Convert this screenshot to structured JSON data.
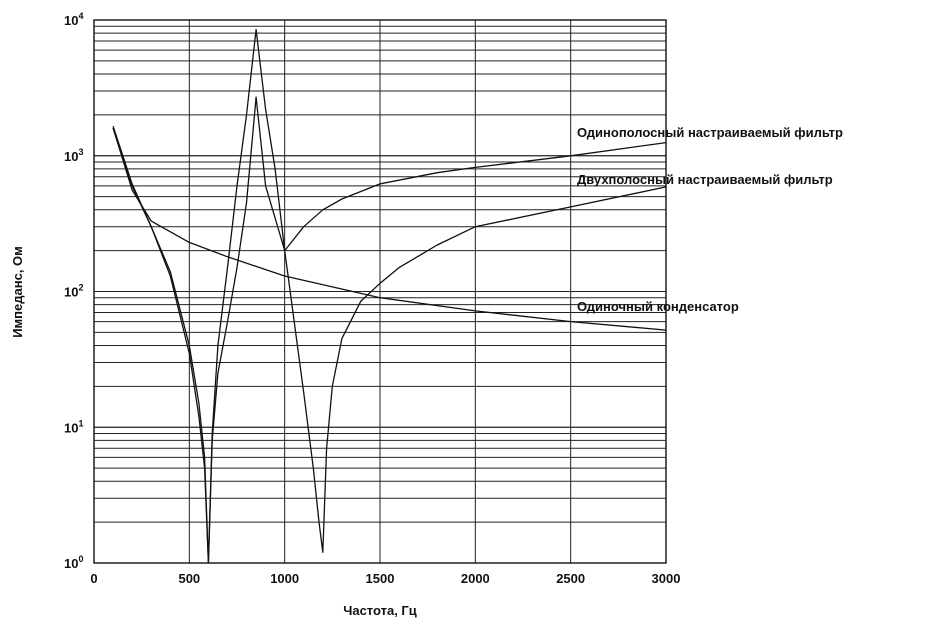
{
  "chart_data": {
    "type": "line",
    "title": "",
    "xlabel": "Частота, Гц",
    "ylabel": "Импеданс, Ом",
    "xlim": [
      0,
      3000
    ],
    "ylim": [
      1,
      10000
    ],
    "yscale": "log",
    "grid": true,
    "x_ticks": [
      0,
      500,
      1000,
      1500,
      2000,
      2500,
      3000
    ],
    "x_tick_labels": [
      "0",
      "500",
      "1000",
      "1500",
      "2000",
      "2500",
      "3000"
    ],
    "y_ticks": [
      1,
      10,
      100,
      1000,
      10000
    ],
    "y_tick_labels": [
      {
        "base": "10",
        "exp": "0"
      },
      {
        "base": "10",
        "exp": "1"
      },
      {
        "base": "10",
        "exp": "2"
      },
      {
        "base": "10",
        "exp": "3"
      },
      {
        "base": "10",
        "exp": "4"
      }
    ],
    "series": [
      {
        "name": "Одинополосный настраиваемый фильтр",
        "x": [
          100,
          200,
          300,
          400,
          500,
          550,
          580,
          600,
          620,
          650,
          700,
          750,
          800,
          850,
          900,
          1000,
          1100,
          1200,
          1300,
          1500,
          1800,
          2000,
          2500,
          3000
        ],
        "y": [
          1650,
          620,
          300,
          130,
          35,
          12,
          5,
          1,
          8,
          25,
          60,
          150,
          450,
          2700,
          600,
          200,
          300,
          400,
          480,
          620,
          750,
          820,
          1000,
          1250
        ]
      },
      {
        "name": "Двухполосный настраиваемый фильтр",
        "x": [
          100,
          200,
          300,
          400,
          500,
          550,
          580,
          600,
          620,
          650,
          700,
          750,
          800,
          850,
          900,
          950,
          1000,
          1050,
          1100,
          1150,
          1180,
          1200,
          1220,
          1250,
          1300,
          1400,
          1500,
          1600,
          1800,
          2000,
          2500,
          3000
        ],
        "y": [
          1600,
          600,
          300,
          140,
          40,
          15,
          6,
          1,
          9,
          40,
          150,
          600,
          2000,
          8500,
          2200,
          800,
          200,
          60,
          18,
          5,
          2,
          1.2,
          7,
          20,
          45,
          85,
          115,
          150,
          220,
          300,
          420,
          590
        ]
      },
      {
        "name": "Одиночный конденсатор",
        "x": [
          100,
          200,
          300,
          500,
          700,
          1000,
          1500,
          2000,
          2500,
          3000
        ],
        "y": [
          1600,
          560,
          330,
          230,
          180,
          130,
          90,
          72,
          60,
          52
        ]
      }
    ],
    "annotations": [
      "Одинополосный настраиваемый фильтр",
      "Двухполосный настраиваемый фильтр",
      "Одиночный конденсатор"
    ]
  }
}
